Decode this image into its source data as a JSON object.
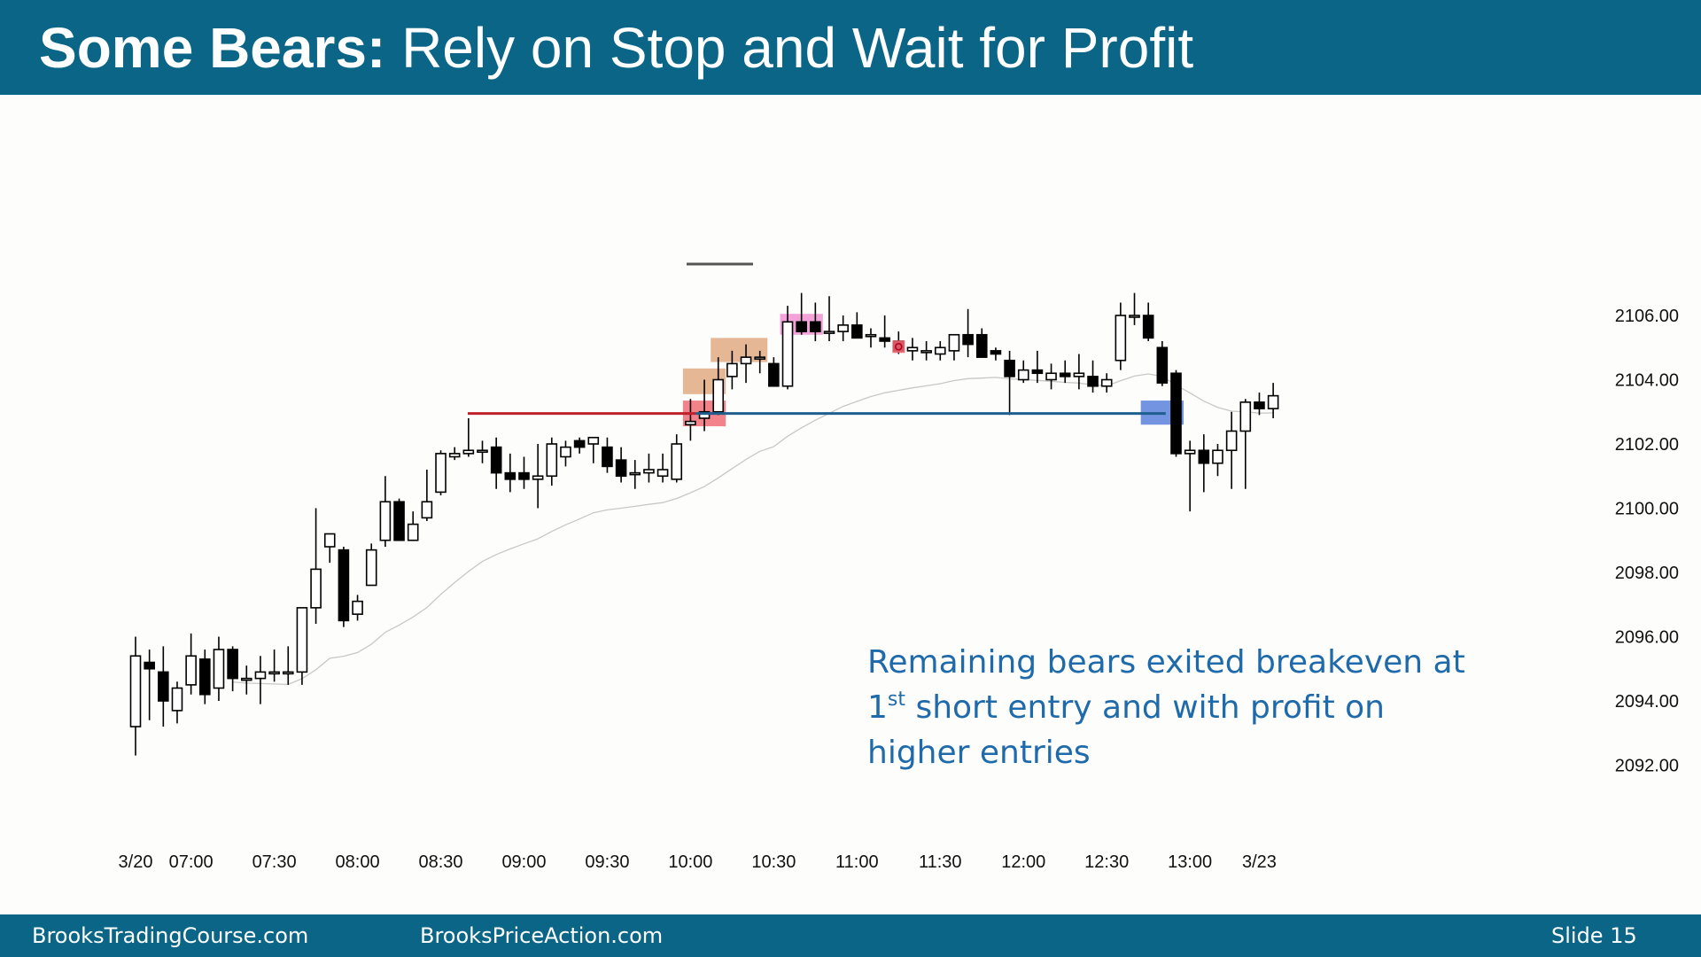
{
  "slide": {
    "title_bold": "Some Bears:",
    "title_rest": "Rely on Stop and Wait for Profit",
    "footer_left": "BrooksTradingCourse.com",
    "footer_mid": "BrooksPriceAction.com",
    "footer_right": "Slide  15"
  },
  "annotation": {
    "line1": "Remaining bears exited breakeven at",
    "line2_num": "1",
    "line2_sup": "st",
    "line2_rest": " short entry and with profit on",
    "line3": "higher entries"
  },
  "colors": {
    "header": "#0a6587",
    "annotation": "#1e6aab",
    "red_line": "#c0202a",
    "blue_line": "#1f5f8f",
    "red_box": "#f0646e",
    "orange_box": "#e0a57a",
    "pink_box": "#f08cd2",
    "blue_box": "#5a82dc",
    "ema": "#c8c8c8"
  },
  "chart_data": {
    "type": "candlestick",
    "title": "",
    "ylim": [
      2090.5,
      2108
    ],
    "y_ticks": [
      "2106.00",
      "2104.00",
      "2102.00",
      "2100.00",
      "2098.00",
      "2096.00",
      "2094.00",
      "2092.00"
    ],
    "x_ticks": [
      "3/20",
      "07:00",
      "07:30",
      "08:00",
      "08:30",
      "09:00",
      "09:30",
      "10:00",
      "10:30",
      "11:00",
      "11:30",
      "12:00",
      "12:30",
      "13:00",
      "3/23"
    ],
    "x_tick_bars": [
      0,
      4,
      10,
      16,
      22,
      28,
      34,
      40,
      46,
      52,
      58,
      64,
      70,
      76,
      81
    ],
    "bars": [
      {
        "o": 2093.2,
        "h": 2096.0,
        "l": 2092.3,
        "c": 2095.4
      },
      {
        "o": 2095.2,
        "h": 2095.6,
        "l": 2093.4,
        "c": 2095.0
      },
      {
        "o": 2094.9,
        "h": 2095.7,
        "l": 2093.2,
        "c": 2094.0
      },
      {
        "o": 2093.7,
        "h": 2094.6,
        "l": 2093.3,
        "c": 2094.4
      },
      {
        "o": 2094.5,
        "h": 2096.1,
        "l": 2094.2,
        "c": 2095.4
      },
      {
        "o": 2095.3,
        "h": 2095.6,
        "l": 2093.9,
        "c": 2094.2
      },
      {
        "o": 2094.4,
        "h": 2096.0,
        "l": 2094.0,
        "c": 2095.6
      },
      {
        "o": 2095.6,
        "h": 2095.7,
        "l": 2094.3,
        "c": 2094.7
      },
      {
        "o": 2094.7,
        "h": 2095.1,
        "l": 2094.2,
        "c": 2094.7
      },
      {
        "o": 2094.7,
        "h": 2095.4,
        "l": 2093.9,
        "c": 2094.9
      },
      {
        "o": 2094.9,
        "h": 2095.6,
        "l": 2094.6,
        "c": 2094.9
      },
      {
        "o": 2094.9,
        "h": 2095.7,
        "l": 2094.5,
        "c": 2094.9
      },
      {
        "o": 2094.9,
        "h": 2096.9,
        "l": 2094.5,
        "c": 2096.9
      },
      {
        "o": 2096.9,
        "h": 2100.0,
        "l": 2096.4,
        "c": 2098.1
      },
      {
        "o": 2098.8,
        "h": 2099.2,
        "l": 2098.3,
        "c": 2099.2
      },
      {
        "o": 2098.7,
        "h": 2098.8,
        "l": 2096.3,
        "c": 2096.5
      },
      {
        "o": 2096.7,
        "h": 2097.3,
        "l": 2096.5,
        "c": 2097.1
      },
      {
        "o": 2097.6,
        "h": 2098.9,
        "l": 2097.6,
        "c": 2098.7
      },
      {
        "o": 2099.0,
        "h": 2101.0,
        "l": 2098.8,
        "c": 2100.2
      },
      {
        "o": 2100.2,
        "h": 2100.3,
        "l": 2099.0,
        "c": 2099.0
      },
      {
        "o": 2099.0,
        "h": 2099.9,
        "l": 2099.0,
        "c": 2099.5
      },
      {
        "o": 2099.7,
        "h": 2101.2,
        "l": 2099.6,
        "c": 2100.2
      },
      {
        "o": 2100.5,
        "h": 2101.8,
        "l": 2100.4,
        "c": 2101.7
      },
      {
        "o": 2101.6,
        "h": 2101.9,
        "l": 2101.5,
        "c": 2101.7
      },
      {
        "o": 2101.7,
        "h": 2102.8,
        "l": 2101.6,
        "c": 2101.8
      },
      {
        "o": 2101.8,
        "h": 2102.1,
        "l": 2101.4,
        "c": 2101.8
      },
      {
        "o": 2101.9,
        "h": 2102.2,
        "l": 2100.6,
        "c": 2101.1
      },
      {
        "o": 2101.1,
        "h": 2101.7,
        "l": 2100.5,
        "c": 2100.9
      },
      {
        "o": 2101.1,
        "h": 2101.6,
        "l": 2100.6,
        "c": 2100.9
      },
      {
        "o": 2100.9,
        "h": 2102.0,
        "l": 2100.0,
        "c": 2101.0
      },
      {
        "o": 2101.0,
        "h": 2102.2,
        "l": 2100.7,
        "c": 2102.0
      },
      {
        "o": 2101.6,
        "h": 2102.1,
        "l": 2101.3,
        "c": 2101.9
      },
      {
        "o": 2102.1,
        "h": 2102.2,
        "l": 2101.7,
        "c": 2101.9
      },
      {
        "o": 2102.0,
        "h": 2102.2,
        "l": 2101.4,
        "c": 2102.2
      },
      {
        "o": 2101.9,
        "h": 2102.2,
        "l": 2101.1,
        "c": 2101.3
      },
      {
        "o": 2101.5,
        "h": 2101.9,
        "l": 2100.8,
        "c": 2101.0
      },
      {
        "o": 2101.1,
        "h": 2101.5,
        "l": 2100.6,
        "c": 2101.1
      },
      {
        "o": 2101.1,
        "h": 2101.7,
        "l": 2100.8,
        "c": 2101.2
      },
      {
        "o": 2101.0,
        "h": 2101.7,
        "l": 2100.8,
        "c": 2101.2
      },
      {
        "o": 2100.9,
        "h": 2102.3,
        "l": 2100.8,
        "c": 2102.0
      },
      {
        "o": 2102.6,
        "h": 2103.4,
        "l": 2102.1,
        "c": 2102.7
      },
      {
        "o": 2102.8,
        "h": 2104.0,
        "l": 2102.4,
        "c": 2103.0
      },
      {
        "o": 2103.0,
        "h": 2104.7,
        "l": 2102.9,
        "c": 2104.0
      },
      {
        "o": 2104.1,
        "h": 2104.9,
        "l": 2103.7,
        "c": 2104.5
      },
      {
        "o": 2104.5,
        "h": 2105.1,
        "l": 2103.9,
        "c": 2104.7
      },
      {
        "o": 2104.7,
        "h": 2104.9,
        "l": 2104.2,
        "c": 2104.7
      },
      {
        "o": 2104.5,
        "h": 2104.7,
        "l": 2103.8,
        "c": 2103.8
      },
      {
        "o": 2103.8,
        "h": 2106.3,
        "l": 2103.7,
        "c": 2105.8
      },
      {
        "o": 2105.8,
        "h": 2106.7,
        "l": 2105.4,
        "c": 2105.5
      },
      {
        "o": 2105.8,
        "h": 2106.4,
        "l": 2105.2,
        "c": 2105.5
      },
      {
        "o": 2105.5,
        "h": 2106.6,
        "l": 2105.2,
        "c": 2105.5
      },
      {
        "o": 2105.5,
        "h": 2106.0,
        "l": 2105.2,
        "c": 2105.7
      },
      {
        "o": 2105.7,
        "h": 2106.1,
        "l": 2105.3,
        "c": 2105.3
      },
      {
        "o": 2105.4,
        "h": 2105.6,
        "l": 2105.0,
        "c": 2105.4
      },
      {
        "o": 2105.3,
        "h": 2106.0,
        "l": 2105.0,
        "c": 2105.2
      },
      {
        "o": 2105.2,
        "h": 2105.5,
        "l": 2104.8,
        "c": 2104.9
      },
      {
        "o": 2104.9,
        "h": 2105.3,
        "l": 2104.6,
        "c": 2105.0
      },
      {
        "o": 2104.9,
        "h": 2105.2,
        "l": 2104.6,
        "c": 2104.9
      },
      {
        "o": 2104.8,
        "h": 2105.2,
        "l": 2104.6,
        "c": 2105.0
      },
      {
        "o": 2104.9,
        "h": 2105.3,
        "l": 2104.6,
        "c": 2105.4
      },
      {
        "o": 2105.4,
        "h": 2106.2,
        "l": 2104.7,
        "c": 2105.1
      },
      {
        "o": 2105.4,
        "h": 2105.6,
        "l": 2104.7,
        "c": 2104.7
      },
      {
        "o": 2104.9,
        "h": 2105.0,
        "l": 2104.6,
        "c": 2104.8
      },
      {
        "o": 2104.6,
        "h": 2104.9,
        "l": 2102.9,
        "c": 2104.1
      },
      {
        "o": 2104.0,
        "h": 2104.6,
        "l": 2103.9,
        "c": 2104.3
      },
      {
        "o": 2104.3,
        "h": 2104.9,
        "l": 2103.9,
        "c": 2104.2
      },
      {
        "o": 2104.0,
        "h": 2104.5,
        "l": 2103.7,
        "c": 2104.2
      },
      {
        "o": 2104.2,
        "h": 2104.6,
        "l": 2103.9,
        "c": 2104.1
      },
      {
        "o": 2104.1,
        "h": 2104.8,
        "l": 2103.7,
        "c": 2104.2
      },
      {
        "o": 2104.1,
        "h": 2104.6,
        "l": 2103.6,
        "c": 2103.8
      },
      {
        "o": 2103.8,
        "h": 2104.2,
        "l": 2103.6,
        "c": 2104.0
      },
      {
        "o": 2104.6,
        "h": 2106.4,
        "l": 2104.3,
        "c": 2106.0
      },
      {
        "o": 2106.0,
        "h": 2106.7,
        "l": 2105.7,
        "c": 2106.0
      },
      {
        "o": 2106.0,
        "h": 2106.4,
        "l": 2105.2,
        "c": 2105.3
      },
      {
        "o": 2105.0,
        "h": 2105.2,
        "l": 2103.8,
        "c": 2103.9
      },
      {
        "o": 2104.2,
        "h": 2104.3,
        "l": 2101.6,
        "c": 2101.7
      },
      {
        "o": 2101.7,
        "h": 2102.1,
        "l": 2099.9,
        "c": 2101.8
      },
      {
        "o": 2101.8,
        "h": 2102.3,
        "l": 2100.5,
        "c": 2101.4
      },
      {
        "o": 2101.4,
        "h": 2102.0,
        "l": 2101.0,
        "c": 2101.8
      },
      {
        "o": 2101.8,
        "h": 2103.0,
        "l": 2100.6,
        "c": 2102.4
      },
      {
        "o": 2102.4,
        "h": 2103.4,
        "l": 2100.6,
        "c": 2103.3
      },
      {
        "o": 2103.3,
        "h": 2103.6,
        "l": 2102.9,
        "c": 2103.1
      },
      {
        "o": 2103.1,
        "h": 2103.9,
        "l": 2102.8,
        "c": 2103.5
      }
    ]
  }
}
